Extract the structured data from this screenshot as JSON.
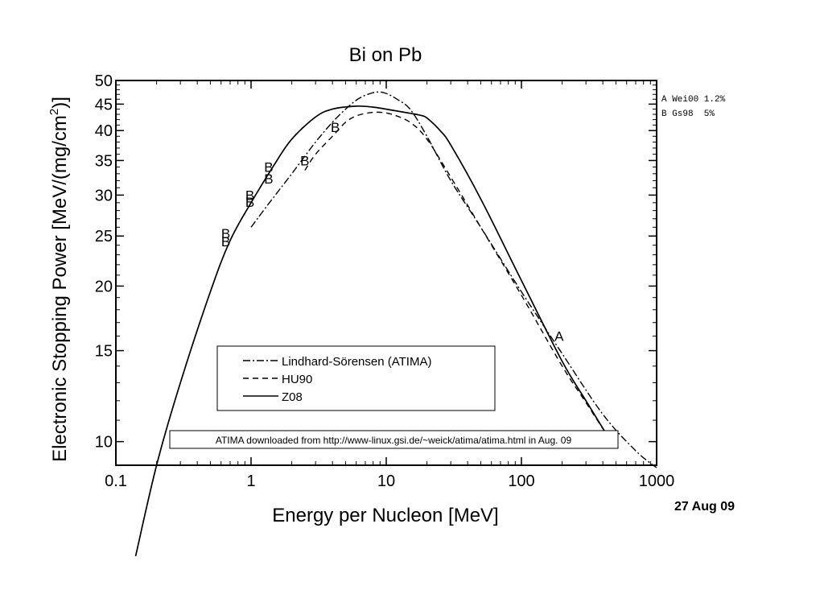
{
  "chart_data": {
    "type": "line",
    "title": "Bi on Pb",
    "xlabel": "Energy per Nucleon [MeV]",
    "ylabel_main": "Electronic Stopping Power [MeV/(mg/cm",
    "ylabel_sup": "2",
    "ylabel_close": ")]",
    "x_scale": "log",
    "y_scale": "log",
    "xlim": [
      0.1,
      1000
    ],
    "ylim": [
      9,
      50
    ],
    "x_ticks": [
      {
        "v": 0.1,
        "label": "0.1"
      },
      {
        "v": 1,
        "label": "1"
      },
      {
        "v": 10,
        "label": "10"
      },
      {
        "v": 100,
        "label": "100"
      },
      {
        "v": 1000,
        "label": "1000"
      }
    ],
    "y_ticks": [
      {
        "v": 10,
        "label": "10"
      },
      {
        "v": 15,
        "label": "15"
      },
      {
        "v": 20,
        "label": "20"
      },
      {
        "v": 25,
        "label": "25"
      },
      {
        "v": 30,
        "label": "30"
      },
      {
        "v": 35,
        "label": "35"
      },
      {
        "v": 40,
        "label": "40"
      },
      {
        "v": 45,
        "label": "45"
      },
      {
        "v": 50,
        "label": "50"
      }
    ],
    "grid": false,
    "legend_position": "lower-left",
    "series": [
      {
        "name": "Lindhard-Sörensen (ATIMA)",
        "style": "dashdot",
        "points": [
          [
            1.0,
            26.0
          ],
          [
            1.3,
            28.5
          ],
          [
            2.0,
            33.0
          ],
          [
            3.0,
            38.0
          ],
          [
            4.0,
            41.5
          ],
          [
            5.0,
            44.0
          ],
          [
            6.0,
            45.8
          ],
          [
            7.0,
            46.8
          ],
          [
            8.5,
            47.5
          ],
          [
            10,
            47.2
          ],
          [
            12,
            46.0
          ],
          [
            15,
            44.0
          ],
          [
            20,
            39.0
          ],
          [
            30,
            32.0
          ],
          [
            50,
            26.0
          ],
          [
            100,
            19.5
          ],
          [
            200,
            14.8
          ],
          [
            400,
            11.3
          ],
          [
            700,
            9.6
          ],
          [
            1000,
            8.9
          ]
        ]
      },
      {
        "name": "HU90",
        "style": "dashed",
        "points": [
          [
            2.5,
            33.5
          ],
          [
            3.0,
            36.0
          ],
          [
            4.0,
            39.0
          ],
          [
            5.0,
            41.5
          ],
          [
            6.0,
            42.7
          ],
          [
            7.5,
            43.3
          ],
          [
            9.0,
            43.4
          ],
          [
            11,
            43.0
          ],
          [
            15,
            41.5
          ],
          [
            20,
            38.5
          ],
          [
            30,
            32.5
          ],
          [
            50,
            26.0
          ],
          [
            100,
            19.2
          ],
          [
            200,
            14.0
          ],
          [
            300,
            11.9
          ],
          [
            450,
            10.1
          ]
        ]
      },
      {
        "name": "Z08",
        "style": "solid",
        "points": [
          [
            0.14,
            6.0
          ],
          [
            0.2,
            9.0
          ],
          [
            0.3,
            13.0
          ],
          [
            0.5,
            19.5
          ],
          [
            0.7,
            24.5
          ],
          [
            1.0,
            29.0
          ],
          [
            1.5,
            34.5
          ],
          [
            2.0,
            38.5
          ],
          [
            3.0,
            42.5
          ],
          [
            4.0,
            44.0
          ],
          [
            6.0,
            44.6
          ],
          [
            8.0,
            44.4
          ],
          [
            10,
            44.0
          ],
          [
            15,
            43.2
          ],
          [
            18,
            42.8
          ],
          [
            20,
            42.3
          ],
          [
            25,
            40.0
          ],
          [
            30,
            37.5
          ],
          [
            50,
            29.5
          ],
          [
            100,
            20.5
          ],
          [
            200,
            14.3
          ],
          [
            300,
            12.0
          ],
          [
            450,
            10.1
          ]
        ]
      }
    ],
    "markers": [
      {
        "ref": "B",
        "points": [
          [
            0.65,
            25.3
          ],
          [
            0.65,
            24.4
          ],
          [
            0.98,
            30.0
          ],
          [
            0.98,
            29.1
          ],
          [
            1.35,
            34.0
          ],
          [
            1.35,
            32.3
          ],
          [
            2.5,
            35.0
          ],
          [
            4.2,
            40.6
          ]
        ]
      },
      {
        "ref": "A",
        "points": [
          [
            190,
            16.0
          ]
        ]
      }
    ],
    "references": [
      {
        "label": "A Wei00 1.2%"
      },
      {
        "label": "B Gs98  5%"
      }
    ],
    "annotation": "ATIMA downloaded from http://www-linux.gsi.de/~weick/atima/atima.html in Aug. 09",
    "date": "27 Aug 09"
  }
}
